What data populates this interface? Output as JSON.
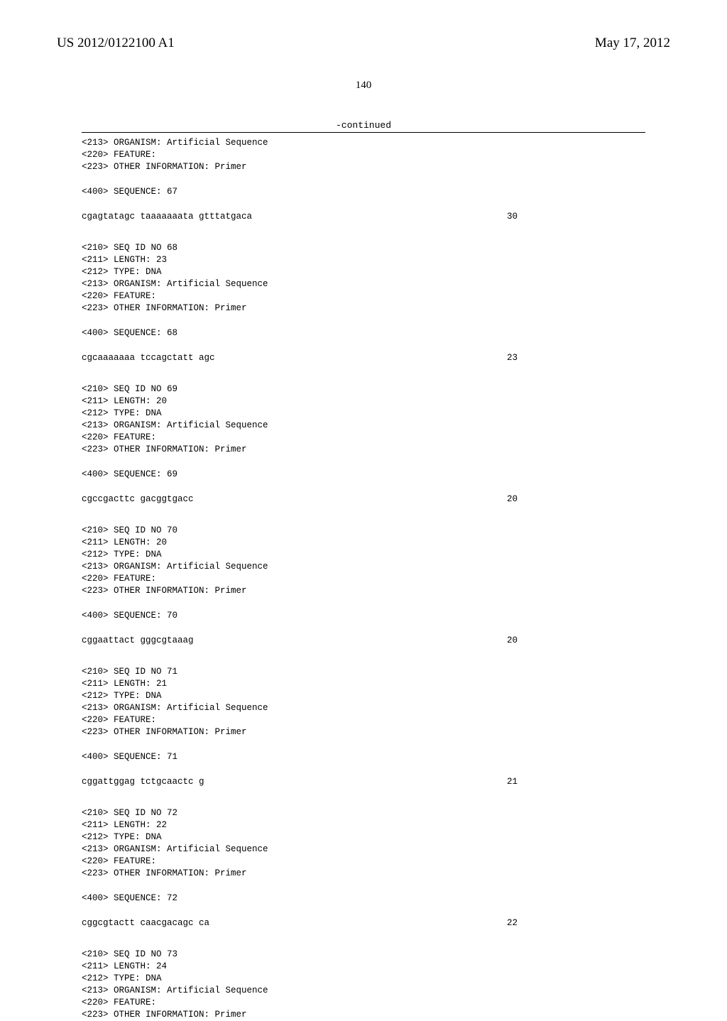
{
  "header": {
    "pub_number": "US 2012/0122100 A1",
    "pub_date": "May 17, 2012"
  },
  "page_number": "140",
  "continued_label": "-continued",
  "blocks": [
    {
      "lines": [
        "<213> ORGANISM: Artificial Sequence",
        "<220> FEATURE:",
        "<223> OTHER INFORMATION: Primer"
      ]
    },
    {
      "lines": [
        "<400> SEQUENCE: 67"
      ]
    },
    {
      "sequence": "cgagtatagc taaaaaaata gtttatgaca",
      "seqnum": "30"
    },
    {
      "lines": [
        "<210> SEQ ID NO 68",
        "<211> LENGTH: 23",
        "<212> TYPE: DNA",
        "<213> ORGANISM: Artificial Sequence",
        "<220> FEATURE:",
        "<223> OTHER INFORMATION: Primer"
      ]
    },
    {
      "lines": [
        "<400> SEQUENCE: 68"
      ]
    },
    {
      "sequence": "cgcaaaaaaa tccagctatt agc",
      "seqnum": "23"
    },
    {
      "lines": [
        "<210> SEQ ID NO 69",
        "<211> LENGTH: 20",
        "<212> TYPE: DNA",
        "<213> ORGANISM: Artificial Sequence",
        "<220> FEATURE:",
        "<223> OTHER INFORMATION: Primer"
      ]
    },
    {
      "lines": [
        "<400> SEQUENCE: 69"
      ]
    },
    {
      "sequence": "cgccgacttc gacggtgacc",
      "seqnum": "20"
    },
    {
      "lines": [
        "<210> SEQ ID NO 70",
        "<211> LENGTH: 20",
        "<212> TYPE: DNA",
        "<213> ORGANISM: Artificial Sequence",
        "<220> FEATURE:",
        "<223> OTHER INFORMATION: Primer"
      ]
    },
    {
      "lines": [
        "<400> SEQUENCE: 70"
      ]
    },
    {
      "sequence": "cggaattact gggcgtaaag",
      "seqnum": "20"
    },
    {
      "lines": [
        "<210> SEQ ID NO 71",
        "<211> LENGTH: 21",
        "<212> TYPE: DNA",
        "<213> ORGANISM: Artificial Sequence",
        "<220> FEATURE:",
        "<223> OTHER INFORMATION: Primer"
      ]
    },
    {
      "lines": [
        "<400> SEQUENCE: 71"
      ]
    },
    {
      "sequence": "cggattggag tctgcaactc g",
      "seqnum": "21"
    },
    {
      "lines": [
        "<210> SEQ ID NO 72",
        "<211> LENGTH: 22",
        "<212> TYPE: DNA",
        "<213> ORGANISM: Artificial Sequence",
        "<220> FEATURE:",
        "<223> OTHER INFORMATION: Primer"
      ]
    },
    {
      "lines": [
        "<400> SEQUENCE: 72"
      ]
    },
    {
      "sequence": "cggcgtactt caacgacagc ca",
      "seqnum": "22"
    },
    {
      "lines": [
        "<210> SEQ ID NO 73",
        "<211> LENGTH: 24",
        "<212> TYPE: DNA",
        "<213> ORGANISM: Artificial Sequence",
        "<220> FEATURE:",
        "<223> OTHER INFORMATION: Primer"
      ]
    }
  ]
}
